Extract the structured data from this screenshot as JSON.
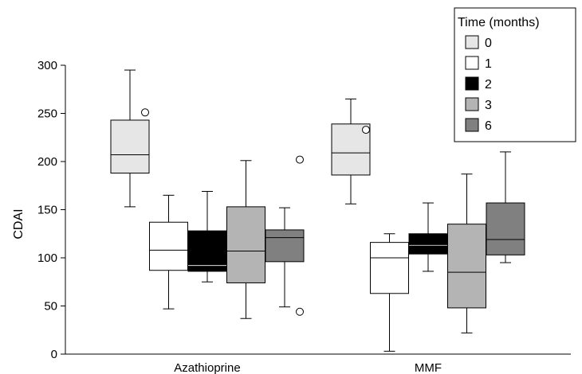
{
  "chart_data": {
    "type": "boxplot",
    "ylabel": "CDAI",
    "ylim": [
      0,
      300
    ],
    "yticks": [
      0,
      50,
      100,
      150,
      200,
      250,
      300
    ],
    "categories": [
      "Azathioprine",
      "MMF"
    ],
    "legend": {
      "title": "Time (months)",
      "position": "top-right",
      "entries": [
        {
          "label": "0",
          "color": "#e6e6e6"
        },
        {
          "label": "1",
          "color": "#ffffff"
        },
        {
          "label": "2",
          "color": "#000000"
        },
        {
          "label": "3",
          "color": "#b4b4b4"
        },
        {
          "label": "6",
          "color": "#808080"
        }
      ]
    },
    "series": [
      {
        "group": "Azathioprine",
        "time": "0",
        "min": 153,
        "q1": 188,
        "median": 207,
        "q3": 243,
        "max": 295,
        "outliers": [
          251
        ]
      },
      {
        "group": "Azathioprine",
        "time": "1",
        "min": 47,
        "q1": 87,
        "median": 108,
        "q3": 137,
        "max": 165,
        "outliers": []
      },
      {
        "group": "Azathioprine",
        "time": "2",
        "min": 75,
        "q1": 86,
        "median": 92,
        "q3": 128,
        "max": 169,
        "outliers": []
      },
      {
        "group": "Azathioprine",
        "time": "3",
        "min": 37,
        "q1": 74,
        "median": 107,
        "q3": 153,
        "max": 201,
        "outliers": []
      },
      {
        "group": "Azathioprine",
        "time": "6",
        "min": 49,
        "q1": 96,
        "median": 121,
        "q3": 129,
        "max": 152,
        "outliers": [
          202,
          44
        ]
      },
      {
        "group": "MMF",
        "time": "0",
        "min": 156,
        "q1": 186,
        "median": 209,
        "q3": 239,
        "max": 265,
        "outliers": [
          233
        ]
      },
      {
        "group": "MMF",
        "time": "1",
        "min": 3,
        "q1": 63,
        "median": 100,
        "q3": 116,
        "max": 125,
        "outliers": []
      },
      {
        "group": "MMF",
        "time": "2",
        "min": 86,
        "q1": 104,
        "median": 113,
        "q3": 125,
        "max": 157,
        "outliers": []
      },
      {
        "group": "MMF",
        "time": "3",
        "min": 22,
        "q1": 48,
        "median": 85,
        "q3": 135,
        "max": 187,
        "outliers": []
      },
      {
        "group": "MMF",
        "time": "6",
        "min": 95,
        "q1": 103,
        "median": 119,
        "q3": 157,
        "max": 210,
        "outliers": []
      }
    ]
  }
}
